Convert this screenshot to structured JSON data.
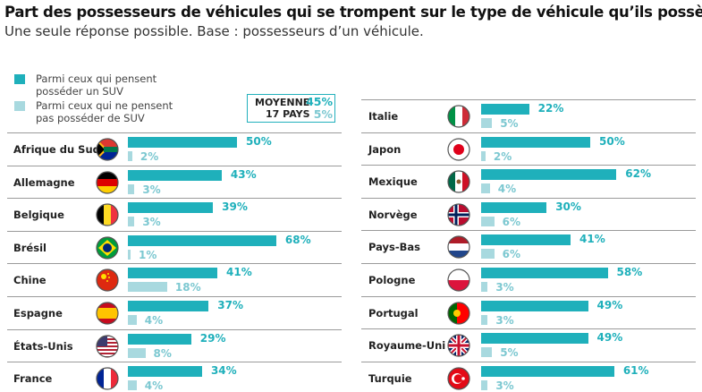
{
  "title": "Part des possesseurs de véhicules qui se trompent sur le type de véhicule qu’ils possèdent",
  "subtitle": "Une seule réponse possible. Base : possesseurs d’un véhicule.",
  "legend": {
    "suv": "Parmi ceux qui pensent posséder un SUV",
    "nonsuv": "Parmi ceux qui ne pensent pas posséder de SUV"
  },
  "average": {
    "label1": "MOYENNE",
    "label2": "17 PAYS",
    "suv": "45%",
    "nonsuv": "5%"
  },
  "colors": {
    "suv": "#1fb0bb",
    "nonsuv": "#a8d9df"
  },
  "chart_data": {
    "type": "bar",
    "orientation": "horizontal",
    "title": "Part des possesseurs de véhicules qui se trompent sur le type de véhicule qu’ils possèdent",
    "series_names": [
      "Parmi ceux qui pensent posséder un SUV",
      "Parmi ceux qui ne pensent pas posséder de SUV"
    ],
    "unit": "%",
    "countries": [
      {
        "name": "Afrique du Sud",
        "flag": "za-flag",
        "suv": 50,
        "nonsuv": 2,
        "suv_label": "50%",
        "nonsuv_label": "2%"
      },
      {
        "name": "Allemagne",
        "flag": "de-flag",
        "suv": 43,
        "nonsuv": 3,
        "suv_label": "43%",
        "nonsuv_label": "3%"
      },
      {
        "name": "Belgique",
        "flag": "be-flag",
        "suv": 39,
        "nonsuv": 3,
        "suv_label": "39%",
        "nonsuv_label": "3%"
      },
      {
        "name": "Brésil",
        "flag": "br-flag",
        "suv": 68,
        "nonsuv": 1,
        "suv_label": "68%",
        "nonsuv_label": "1%"
      },
      {
        "name": "Chine",
        "flag": "cn-flag",
        "suv": 41,
        "nonsuv": 18,
        "suv_label": "41%",
        "nonsuv_label": "18%"
      },
      {
        "name": "Espagne",
        "flag": "es-flag",
        "suv": 37,
        "nonsuv": 4,
        "suv_label": "37%",
        "nonsuv_label": "4%"
      },
      {
        "name": "États-Unis",
        "flag": "us-flag",
        "suv": 29,
        "nonsuv": 8,
        "suv_label": "29%",
        "nonsuv_label": "8%"
      },
      {
        "name": "France",
        "flag": "fr-flag",
        "suv": 34,
        "nonsuv": 4,
        "suv_label": "34%",
        "nonsuv_label": "4%"
      },
      {
        "name": "Italie",
        "flag": "it-flag",
        "suv": 22,
        "nonsuv": 5,
        "suv_label": "22%",
        "nonsuv_label": "5%"
      },
      {
        "name": "Japon",
        "flag": "jp-flag",
        "suv": 50,
        "nonsuv": 2,
        "suv_label": "50%",
        "nonsuv_label": "2%"
      },
      {
        "name": "Mexique",
        "flag": "mx-flag",
        "suv": 62,
        "nonsuv": 4,
        "suv_label": "62%",
        "nonsuv_label": "4%"
      },
      {
        "name": "Norvège",
        "flag": "no-flag",
        "suv": 30,
        "nonsuv": 6,
        "suv_label": "30%",
        "nonsuv_label": "6%"
      },
      {
        "name": "Pays-Bas",
        "flag": "nl-flag",
        "suv": 41,
        "nonsuv": 6,
        "suv_label": "41%",
        "nonsuv_label": "6%"
      },
      {
        "name": "Pologne",
        "flag": "pl-flag",
        "suv": 58,
        "nonsuv": 3,
        "suv_label": "58%",
        "nonsuv_label": "3%"
      },
      {
        "name": "Portugal",
        "flag": "pt-flag",
        "suv": 49,
        "nonsuv": 3,
        "suv_label": "49%",
        "nonsuv_label": "3%"
      },
      {
        "name": "Royaume-Uni",
        "flag": "gb-flag",
        "suv": 49,
        "nonsuv": 5,
        "suv_label": "49%",
        "nonsuv_label": "5%"
      },
      {
        "name": "Turquie",
        "flag": "tr-flag",
        "suv": 61,
        "nonsuv": 3,
        "suv_label": "61%",
        "nonsuv_label": "3%"
      }
    ]
  }
}
